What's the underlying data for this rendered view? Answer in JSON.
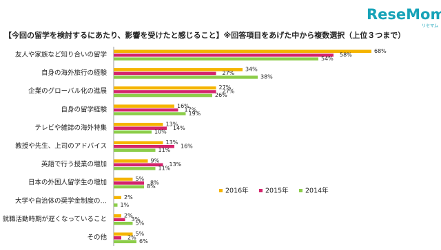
{
  "logo": {
    "text": "ReseMom",
    "kana": "リセマム"
  },
  "chart_data": {
    "type": "bar",
    "orientation": "horizontal",
    "title": "【今回の留学を検討するにあたり、影響を受けたと感じること】※回答項目をあげた中から複数選択（上位３つまで）",
    "categories": [
      "友人や家族など知り合いの留学",
      "自身の海外旅行の経験",
      "企業のグローバル化の進展",
      "自身の留学経験",
      "テレビや雑誌の海外特集",
      "教授や先生、上司のアドバイス",
      "英語で行う授業の増加",
      "日本の外国人留学生の増加",
      "大学や自治体の奨学金制度の…",
      "就職活動時期が遅くなっていること",
      "その他"
    ],
    "series": [
      {
        "name": "2016年",
        "color": "#f5b400",
        "values": [
          68,
          34,
          27,
          16,
          13,
          13,
          9,
          5,
          2,
          2,
          5
        ],
        "value_labels": [
          "68%",
          "34%",
          "27%",
          "16%",
          "13%",
          "13%",
          "9%",
          "5%",
          "2%",
          "2%",
          "5%"
        ]
      },
      {
        "name": "2015年",
        "color": "#d4246c",
        "values": [
          58,
          27,
          27,
          17,
          14,
          16,
          13,
          8,
          null,
          3,
          2
        ],
        "value_labels": [
          "58%",
          "27%",
          "27%",
          "17%",
          "14%",
          "16%",
          "13%",
          "8%",
          null,
          "3%",
          "2%"
        ]
      },
      {
        "name": "2014年",
        "color": "#8ccd4a",
        "values": [
          54,
          38,
          26,
          19,
          10,
          11,
          11,
          8,
          1,
          5,
          6
        ],
        "value_labels": [
          "54%",
          "38%",
          "26%",
          "19%",
          "10%",
          "11%",
          "11%",
          "8%",
          "1%",
          "5%",
          "6%"
        ]
      }
    ],
    "legend": "lower-right"
  }
}
